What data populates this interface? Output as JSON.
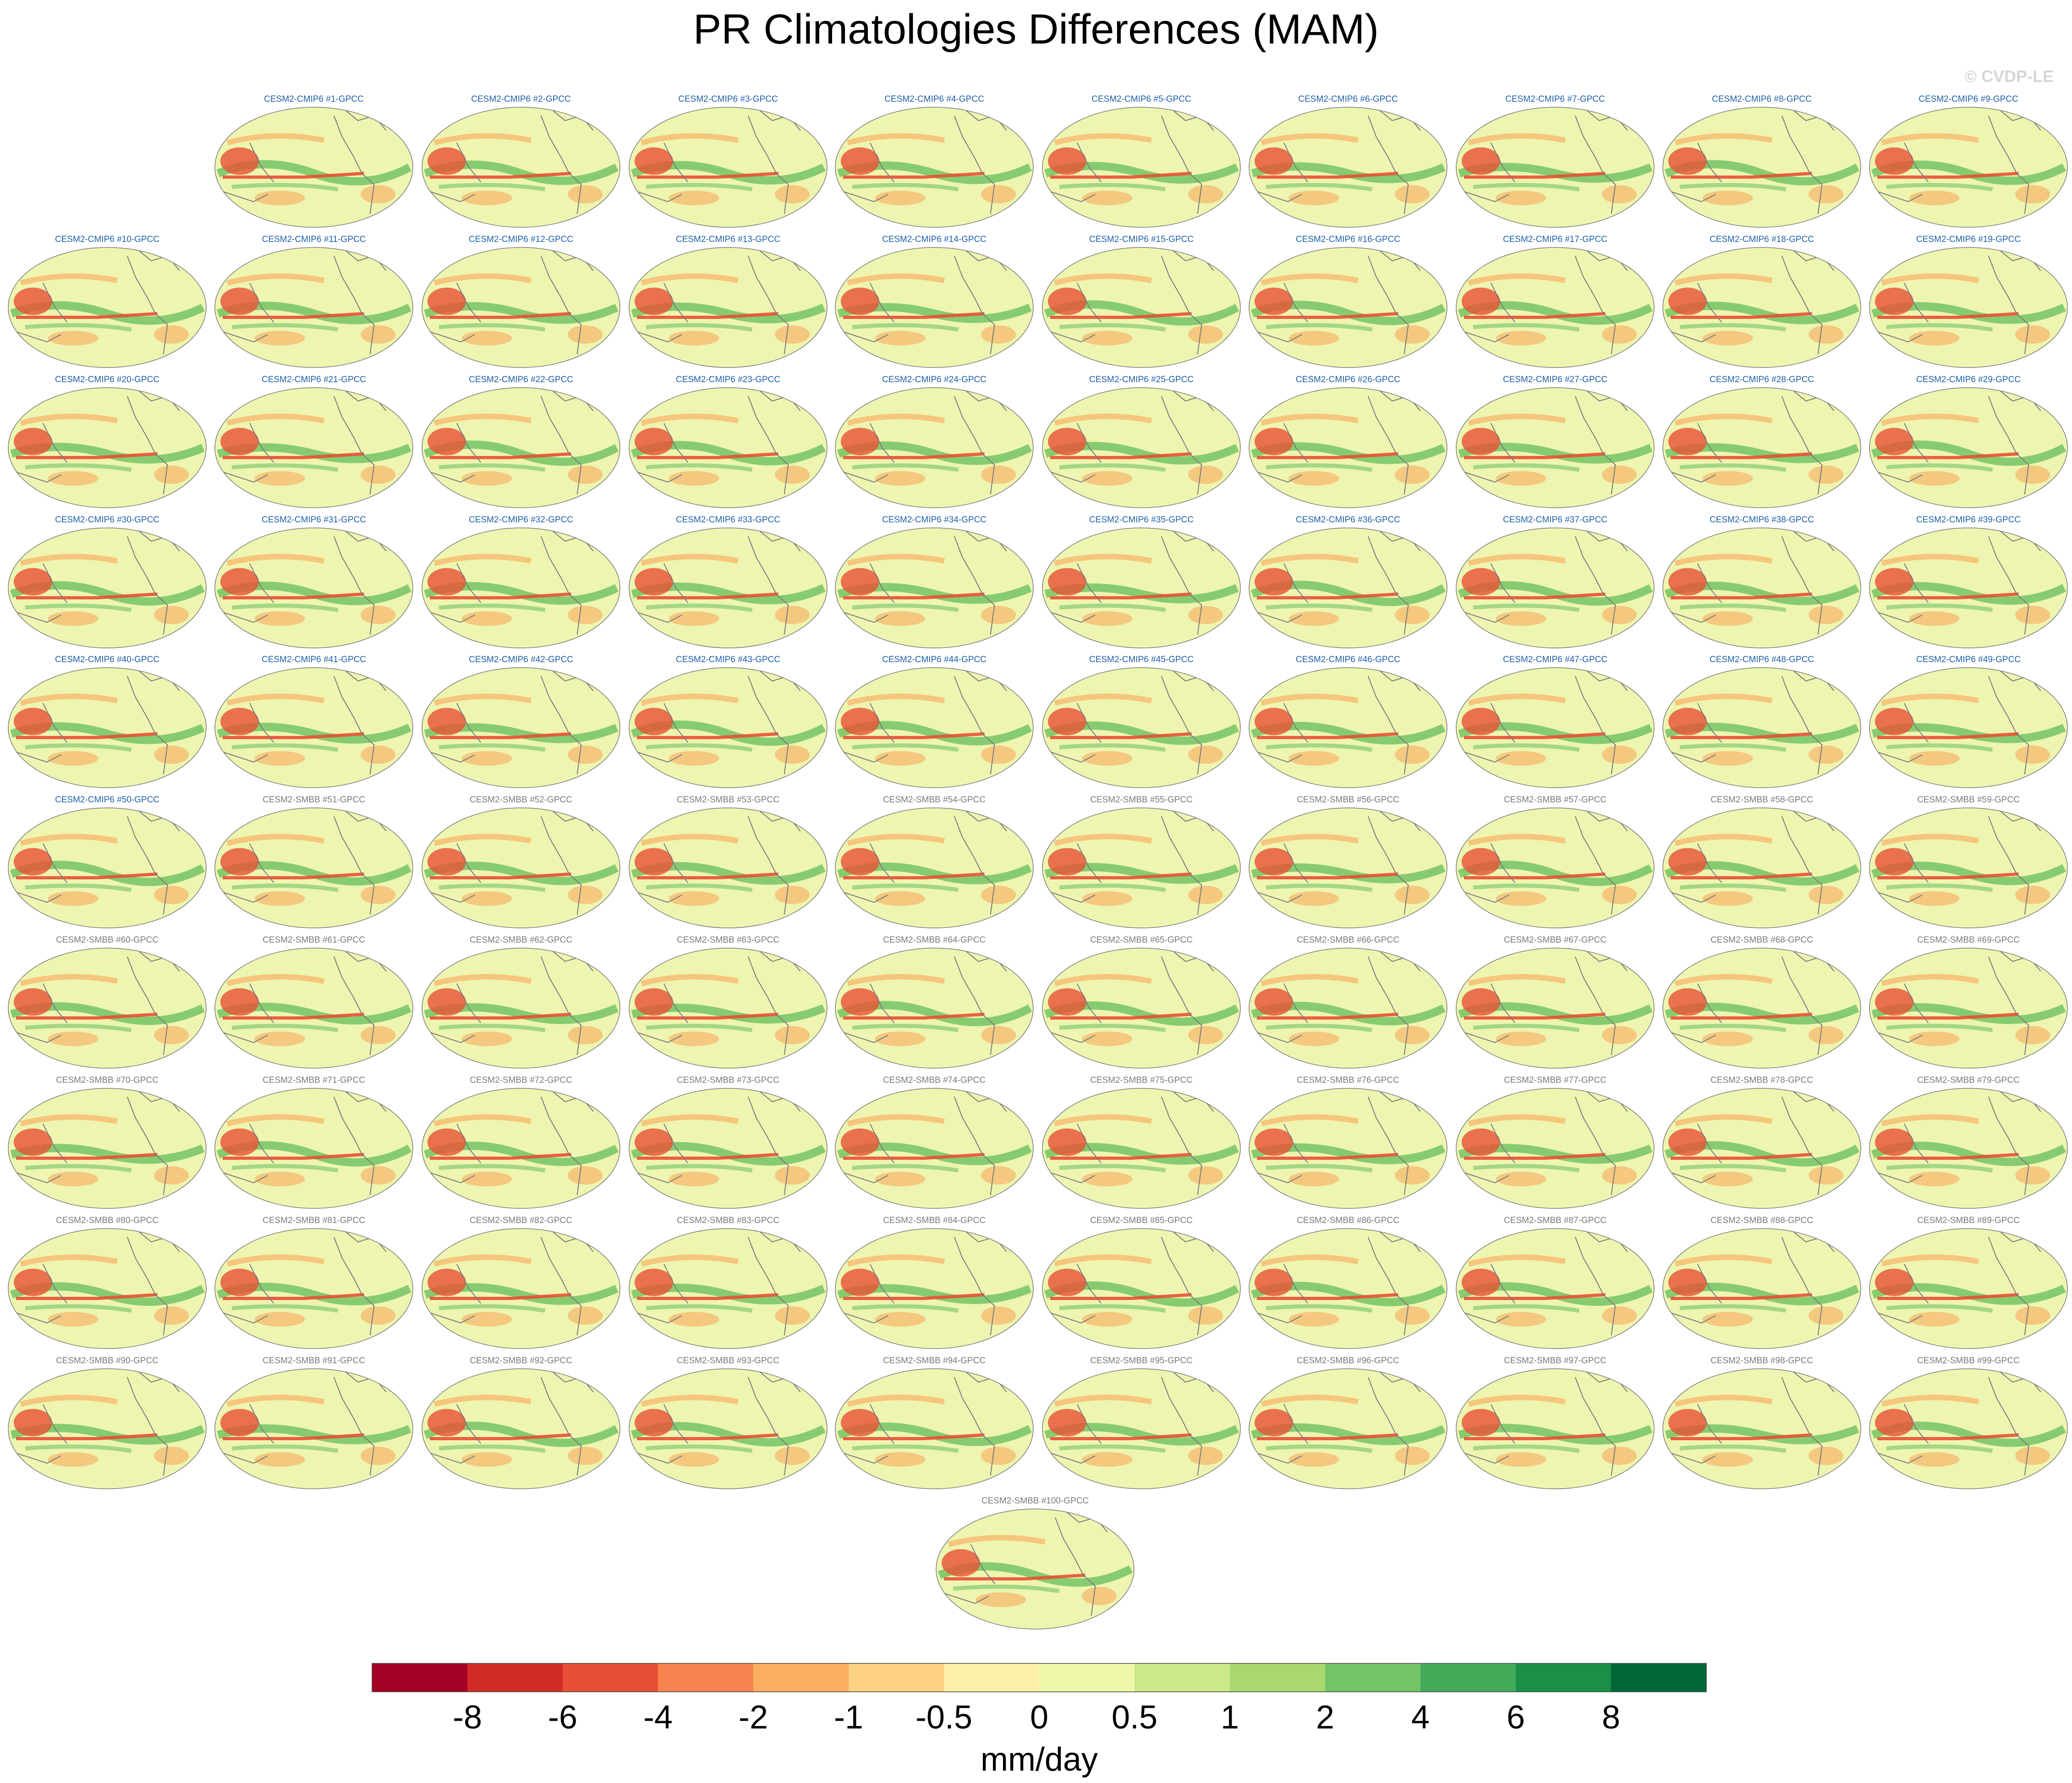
{
  "figure": {
    "title": "PR Climatologies Differences (MAM)",
    "watermark": "© CVDP-LE"
  },
  "chart_data": {
    "type": "heatmap",
    "title": "PR Climatologies Differences (MAM)",
    "panel_series": [
      {
        "prefix": "CESM2-CMIP6",
        "first": 1,
        "last": 50,
        "suffix": "-GPCC",
        "label_color": "#1f5fa8"
      },
      {
        "prefix": "CESM2-SMBB",
        "first": 51,
        "last": 100,
        "suffix": "-GPCC",
        "label_color": "#7a7a7a"
      }
    ],
    "panel_labels": [
      "CESM2-CMIP6 #1-GPCC",
      "CESM2-CMIP6 #2-GPCC",
      "CESM2-CMIP6 #3-GPCC",
      "CESM2-CMIP6 #4-GPCC",
      "CESM2-CMIP6 #5-GPCC",
      "CESM2-CMIP6 #6-GPCC",
      "CESM2-CMIP6 #7-GPCC",
      "CESM2-CMIP6 #8-GPCC",
      "CESM2-CMIP6 #9-GPCC",
      "CESM2-CMIP6 #10-GPCC",
      "CESM2-CMIP6 #11-GPCC",
      "CESM2-CMIP6 #12-GPCC",
      "CESM2-CMIP6 #13-GPCC",
      "CESM2-CMIP6 #14-GPCC",
      "CESM2-CMIP6 #15-GPCC",
      "CESM2-CMIP6 #16-GPCC",
      "CESM2-CMIP6 #17-GPCC",
      "CESM2-CMIP6 #18-GPCC",
      "CESM2-CMIP6 #19-GPCC",
      "CESM2-CMIP6 #20-GPCC",
      "CESM2-CMIP6 #21-GPCC",
      "CESM2-CMIP6 #22-GPCC",
      "CESM2-CMIP6 #23-GPCC",
      "CESM2-CMIP6 #24-GPCC",
      "CESM2-CMIP6 #25-GPCC",
      "CESM2-CMIP6 #26-GPCC",
      "CESM2-CMIP6 #27-GPCC",
      "CESM2-CMIP6 #28-GPCC",
      "CESM2-CMIP6 #29-GPCC",
      "CESM2-CMIP6 #30-GPCC",
      "CESM2-CMIP6 #31-GPCC",
      "CESM2-CMIP6 #32-GPCC",
      "CESM2-CMIP6 #33-GPCC",
      "CESM2-CMIP6 #34-GPCC",
      "CESM2-CMIP6 #35-GPCC",
      "CESM2-CMIP6 #36-GPCC",
      "CESM2-CMIP6 #37-GPCC",
      "CESM2-CMIP6 #38-GPCC",
      "CESM2-CMIP6 #39-GPCC",
      "CESM2-CMIP6 #40-GPCC",
      "CESM2-CMIP6 #41-GPCC",
      "CESM2-CMIP6 #42-GPCC",
      "CESM2-CMIP6 #43-GPCC",
      "CESM2-CMIP6 #44-GPCC",
      "CESM2-CMIP6 #45-GPCC",
      "CESM2-CMIP6 #46-GPCC",
      "CESM2-CMIP6 #47-GPCC",
      "CESM2-CMIP6 #48-GPCC",
      "CESM2-CMIP6 #49-GPCC",
      "CESM2-CMIP6 #50-GPCC",
      "CESM2-SMBB #51-GPCC",
      "CESM2-SMBB #52-GPCC",
      "CESM2-SMBB #53-GPCC",
      "CESM2-SMBB #54-GPCC",
      "CESM2-SMBB #55-GPCC",
      "CESM2-SMBB #56-GPCC",
      "CESM2-SMBB #57-GPCC",
      "CESM2-SMBB #58-GPCC",
      "CESM2-SMBB #59-GPCC",
      "CESM2-SMBB #60-GPCC",
      "CESM2-SMBB #61-GPCC",
      "CESM2-SMBB #62-GPCC",
      "CESM2-SMBB #63-GPCC",
      "CESM2-SMBB #64-GPCC",
      "CESM2-SMBB #65-GPCC",
      "CESM2-SMBB #66-GPCC",
      "CESM2-SMBB #67-GPCC",
      "CESM2-SMBB #68-GPCC",
      "CESM2-SMBB #69-GPCC",
      "CESM2-SMBB #70-GPCC",
      "CESM2-SMBB #71-GPCC",
      "CESM2-SMBB #72-GPCC",
      "CESM2-SMBB #73-GPCC",
      "CESM2-SMBB #74-GPCC",
      "CESM2-SMBB #75-GPCC",
      "CESM2-SMBB #76-GPCC",
      "CESM2-SMBB #77-GPCC",
      "CESM2-SMBB #78-GPCC",
      "CESM2-SMBB #79-GPCC",
      "CESM2-SMBB #80-GPCC",
      "CESM2-SMBB #81-GPCC",
      "CESM2-SMBB #82-GPCC",
      "CESM2-SMBB #83-GPCC",
      "CESM2-SMBB #84-GPCC",
      "CESM2-SMBB #85-GPCC",
      "CESM2-SMBB #86-GPCC",
      "CESM2-SMBB #87-GPCC",
      "CESM2-SMBB #88-GPCC",
      "CESM2-SMBB #89-GPCC",
      "CESM2-SMBB #90-GPCC",
      "CESM2-SMBB #91-GPCC",
      "CESM2-SMBB #92-GPCC",
      "CESM2-SMBB #93-GPCC",
      "CESM2-SMBB #94-GPCC",
      "CESM2-SMBB #95-GPCC",
      "CESM2-SMBB #96-GPCC",
      "CESM2-SMBB #97-GPCC",
      "CESM2-SMBB #98-GPCC",
      "CESM2-SMBB #99-GPCC",
      "CESM2-SMBB #100-GPCC"
    ],
    "colorbar": {
      "label": "mm/day",
      "tick_labels": [
        "-8",
        "-6",
        "-4",
        "-2",
        "-1",
        "-0.5",
        "0",
        "0.5",
        "1",
        "2",
        "4",
        "6",
        "8"
      ],
      "colors": [
        "#a50026",
        "#d22b26",
        "#e85035",
        "#f7844e",
        "#fdae61",
        "#fdd280",
        "#fff0a8",
        "#eef7aa",
        "#cbe88a",
        "#a8d86e",
        "#74c365",
        "#44ab5a",
        "#1a8f48",
        "#006837"
      ]
    },
    "map_colors": {
      "background": "#eef5b0",
      "ocean_edge": "#7a7a7a",
      "coast": "#7a7a7a",
      "wet": "#74c365",
      "dry": "#e85035",
      "slight_dry": "#f7b56b"
    }
  }
}
